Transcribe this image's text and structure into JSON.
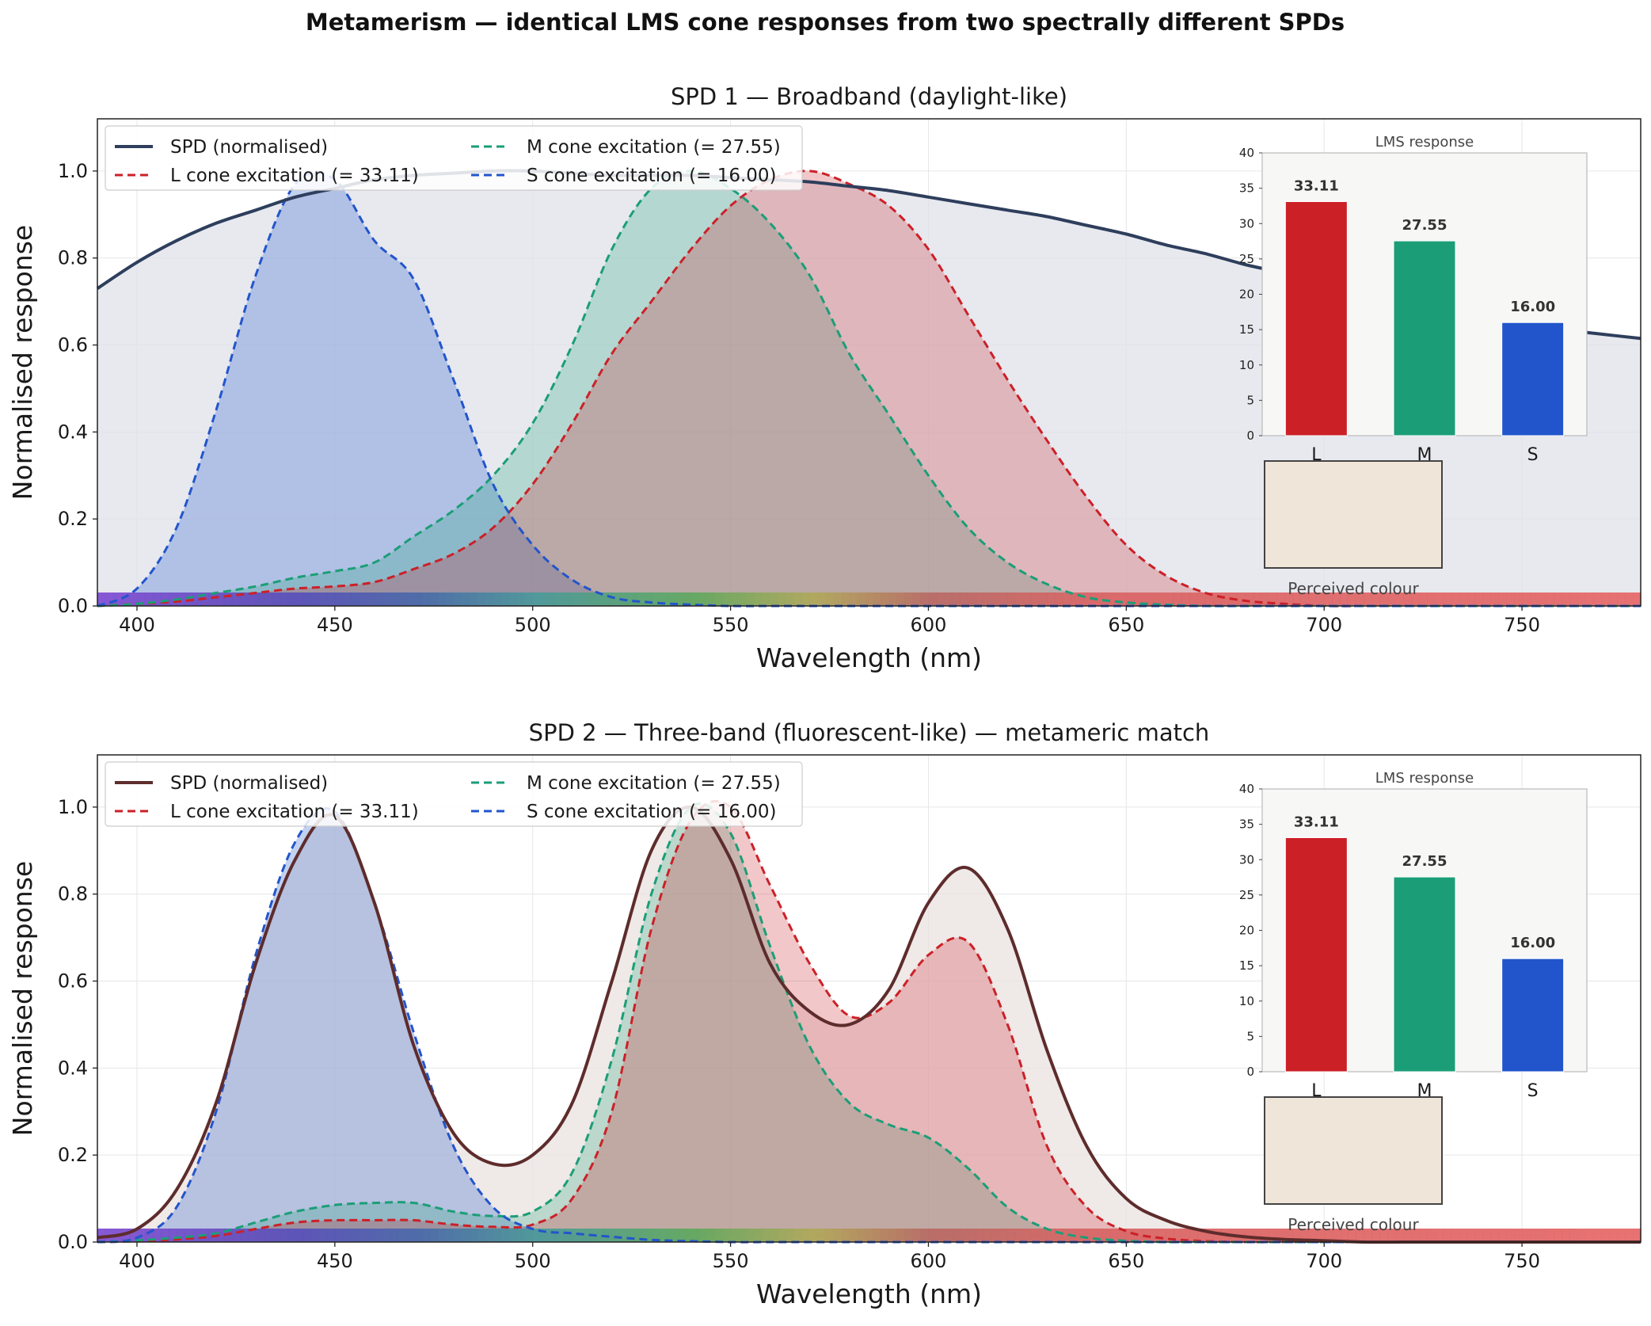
{
  "figure": {
    "title": "Metamerism — identical LMS cone responses from two spectrally different SPDs"
  },
  "colors": {
    "L": "#cc2027",
    "M": "#1b9e77",
    "S": "#2255cc",
    "spd1": "#2e3e5c",
    "spd2": "#5e2c2c",
    "perceived": "#f0e5d9"
  },
  "chart_data": [
    {
      "type": "line",
      "title": "SPD 1 — Broadband (daylight-like)",
      "xlabel": "Wavelength (nm)",
      "ylabel": "Normalised response",
      "xlim": [
        390,
        780
      ],
      "ylim": [
        0,
        1.12
      ],
      "xticks": [
        400,
        450,
        500,
        550,
        600,
        650,
        700,
        750
      ],
      "yticks": [
        0.0,
        0.2,
        0.4,
        0.6,
        0.8,
        1.0
      ],
      "grid": true,
      "legend": {
        "placement": "upper-left",
        "columns": 2
      },
      "spectrum_strip": true,
      "x": [
        390,
        400,
        410,
        420,
        430,
        440,
        450,
        460,
        470,
        480,
        490,
        500,
        510,
        520,
        530,
        540,
        550,
        560,
        570,
        580,
        590,
        600,
        610,
        620,
        630,
        640,
        650,
        660,
        670,
        680,
        690,
        700,
        710,
        720,
        730,
        740,
        750,
        760,
        770,
        780
      ],
      "series": [
        {
          "name": "SPD (normalised)",
          "key": "spd",
          "style": "solid",
          "values": [
            0.73,
            0.79,
            0.84,
            0.88,
            0.91,
            0.94,
            0.96,
            0.98,
            0.99,
            0.995,
            1.0,
            1.0,
            0.995,
            0.99,
            0.99,
            0.99,
            0.985,
            0.98,
            0.975,
            0.965,
            0.955,
            0.94,
            0.925,
            0.91,
            0.895,
            0.875,
            0.855,
            0.83,
            0.81,
            0.785,
            0.765,
            0.74,
            0.715,
            0.695,
            0.675,
            0.66,
            0.645,
            0.635,
            0.625,
            0.615
          ]
        },
        {
          "name": "L cone excitation  (= 33.11)",
          "key": "L",
          "style": "dashed",
          "values": [
            0,
            0.005,
            0.01,
            0.02,
            0.03,
            0.04,
            0.045,
            0.055,
            0.085,
            0.12,
            0.18,
            0.28,
            0.42,
            0.58,
            0.7,
            0.82,
            0.92,
            0.98,
            1.0,
            0.97,
            0.92,
            0.82,
            0.67,
            0.52,
            0.38,
            0.25,
            0.14,
            0.07,
            0.03,
            0.012,
            0.005,
            0,
            0,
            0,
            0,
            0,
            0,
            0,
            0,
            0
          ]
        },
        {
          "name": "M cone excitation  (= 27.55)",
          "key": "M",
          "style": "dashed",
          "values": [
            0,
            0.005,
            0.015,
            0.03,
            0.045,
            0.065,
            0.08,
            0.1,
            0.16,
            0.22,
            0.3,
            0.42,
            0.6,
            0.82,
            0.96,
            1.0,
            0.96,
            0.88,
            0.76,
            0.58,
            0.44,
            0.3,
            0.18,
            0.1,
            0.05,
            0.02,
            0.008,
            0.003,
            0,
            0,
            0,
            0,
            0,
            0,
            0,
            0,
            0,
            0,
            0,
            0
          ]
        },
        {
          "name": "S cone excitation  (= 16.00)",
          "key": "S",
          "style": "dashed",
          "values": [
            0,
            0.04,
            0.18,
            0.45,
            0.76,
            0.97,
            0.98,
            0.84,
            0.75,
            0.52,
            0.28,
            0.14,
            0.06,
            0.02,
            0.008,
            0.003,
            0,
            0,
            0,
            0,
            0,
            0,
            0,
            0,
            0,
            0,
            0,
            0,
            0,
            0,
            0,
            0,
            0,
            0,
            0,
            0,
            0,
            0,
            0,
            0
          ]
        }
      ],
      "inset": {
        "title": "LMS response",
        "categories": [
          "L",
          "M",
          "S"
        ],
        "values": [
          33.11,
          27.55,
          16.0
        ],
        "value_labels": [
          "33.11",
          "27.55",
          "16.00"
        ],
        "ylim": [
          0,
          40
        ],
        "yticks": [
          0,
          5,
          10,
          15,
          20,
          25,
          30,
          35,
          40
        ]
      },
      "swatch_label": "Perceived colour"
    },
    {
      "type": "line",
      "title": "SPD 2 — Three-band (fluorescent-like) — metameric match",
      "xlabel": "Wavelength (nm)",
      "ylabel": "Normalised response",
      "xlim": [
        390,
        780
      ],
      "ylim": [
        0,
        1.12
      ],
      "xticks": [
        400,
        450,
        500,
        550,
        600,
        650,
        700,
        750
      ],
      "yticks": [
        0.0,
        0.2,
        0.4,
        0.6,
        0.8,
        1.0
      ],
      "grid": true,
      "legend": {
        "placement": "upper-left",
        "columns": 2
      },
      "spectrum_strip": true,
      "x": [
        390,
        400,
        410,
        420,
        430,
        440,
        450,
        460,
        470,
        480,
        490,
        500,
        510,
        520,
        530,
        540,
        550,
        560,
        570,
        580,
        590,
        600,
        610,
        620,
        630,
        640,
        650,
        660,
        670,
        680,
        690,
        700,
        710,
        720,
        730,
        740,
        750,
        760,
        770,
        780
      ],
      "series": [
        {
          "name": "SPD (normalised)",
          "key": "spd",
          "style": "solid",
          "values": [
            0.01,
            0.03,
            0.12,
            0.32,
            0.64,
            0.88,
            0.98,
            0.78,
            0.45,
            0.25,
            0.18,
            0.2,
            0.32,
            0.6,
            0.9,
            1.0,
            0.88,
            0.64,
            0.53,
            0.5,
            0.58,
            0.78,
            0.86,
            0.72,
            0.44,
            0.22,
            0.1,
            0.05,
            0.025,
            0.012,
            0.006,
            0.003,
            0,
            0,
            0,
            0,
            0,
            0,
            0,
            0
          ]
        },
        {
          "name": "L cone excitation  (= 33.11)",
          "key": "L",
          "style": "dashed",
          "values": [
            0,
            0.002,
            0.006,
            0.014,
            0.03,
            0.045,
            0.05,
            0.05,
            0.05,
            0.04,
            0.035,
            0.04,
            0.1,
            0.3,
            0.72,
            0.97,
            1.0,
            0.82,
            0.64,
            0.52,
            0.55,
            0.66,
            0.69,
            0.5,
            0.22,
            0.08,
            0.025,
            0.008,
            0.002,
            0,
            0,
            0,
            0,
            0,
            0,
            0,
            0,
            0,
            0,
            0
          ]
        },
        {
          "name": "M cone excitation  (= 27.55)",
          "key": "M",
          "style": "dashed",
          "values": [
            0,
            0.004,
            0.01,
            0.02,
            0.045,
            0.07,
            0.085,
            0.09,
            0.09,
            0.07,
            0.06,
            0.07,
            0.16,
            0.42,
            0.8,
            1.0,
            0.94,
            0.68,
            0.45,
            0.32,
            0.27,
            0.24,
            0.17,
            0.08,
            0.03,
            0.01,
            0.003,
            0,
            0,
            0,
            0,
            0,
            0,
            0,
            0,
            0,
            0,
            0,
            0,
            0
          ]
        },
        {
          "name": "S cone excitation  (= 16.00)",
          "key": "S",
          "style": "dashed",
          "values": [
            0,
            0.01,
            0.08,
            0.3,
            0.66,
            0.92,
            0.99,
            0.78,
            0.48,
            0.22,
            0.08,
            0.03,
            0.02,
            0.012,
            0.005,
            0.002,
            0,
            0,
            0,
            0,
            0,
            0,
            0,
            0,
            0,
            0,
            0,
            0,
            0,
            0,
            0,
            0,
            0,
            0,
            0,
            0,
            0,
            0,
            0,
            0
          ]
        }
      ],
      "inset": {
        "title": "LMS response",
        "categories": [
          "L",
          "M",
          "S"
        ],
        "values": [
          33.11,
          27.55,
          16.0
        ],
        "value_labels": [
          "33.11",
          "27.55",
          "16.00"
        ],
        "ylim": [
          0,
          40
        ],
        "yticks": [
          0,
          5,
          10,
          15,
          20,
          25,
          30,
          35,
          40
        ]
      },
      "swatch_label": "Perceived colour"
    }
  ]
}
